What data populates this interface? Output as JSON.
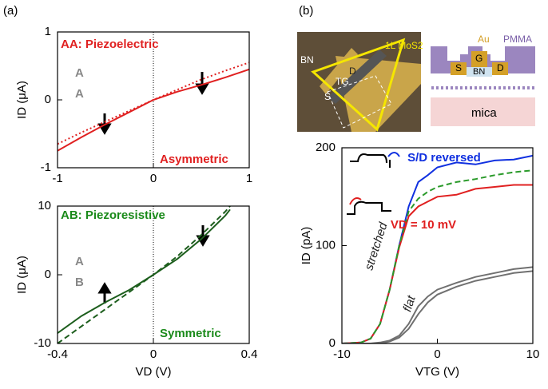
{
  "panel_labels": [
    "(a)",
    "(b)"
  ],
  "device_image": {
    "labels": [
      "1L MoS2",
      "BN",
      "D",
      "TG",
      "S"
    ]
  },
  "schematic": {
    "labels": [
      "Au",
      "PMMA",
      "S",
      "G",
      "D",
      "BN",
      "mica"
    ]
  },
  "chart_data": [
    {
      "type": "line",
      "title": "AA: Piezoelectric",
      "title_color": "#e02020",
      "annotations": [
        "Asymmetric",
        "A",
        "A"
      ],
      "annotation_color": "#e02020",
      "ylabel": "ID (μA)",
      "xlim": [
        -1,
        1
      ],
      "ylim": [
        -1,
        1
      ],
      "xticks": [
        -1,
        0,
        1
      ],
      "yticks": [
        -1,
        0,
        1
      ],
      "zero_line": true,
      "x": [
        -1,
        -0.75,
        -0.5,
        -0.25,
        0,
        0.25,
        0.5,
        0.75,
        1
      ],
      "series": [
        {
          "color": "#e02020",
          "dash": "solid",
          "values": [
            -0.75,
            -0.55,
            -0.36,
            -0.18,
            0,
            0.12,
            0.22,
            0.33,
            0.45
          ]
        },
        {
          "color": "#e02020",
          "dash": "dotted",
          "values": [
            -0.65,
            -0.48,
            -0.32,
            -0.16,
            0,
            0.15,
            0.3,
            0.43,
            0.55
          ]
        }
      ]
    },
    {
      "type": "line",
      "title": "AB: Piezoresistive",
      "title_color": "#1a8a1a",
      "annotations": [
        "Symmetric",
        "A",
        "B"
      ],
      "annotation_color": "#1a8a1a",
      "xlabel": "VD (V)",
      "ylabel": "ID (μA)",
      "xlim": [
        -0.4,
        0.4
      ],
      "ylim": [
        -10,
        10
      ],
      "xticks": [
        -0.4,
        0,
        0.4
      ],
      "yticks": [
        -10,
        0,
        10
      ],
      "zero_line": true,
      "x": [
        -0.4,
        -0.3,
        -0.2,
        -0.1,
        0,
        0.1,
        0.2,
        0.3,
        0.32
      ],
      "series": [
        {
          "color": "#1d5e1d",
          "dash": "solid",
          "values": [
            -8.5,
            -6,
            -4,
            -2.2,
            0,
            2.3,
            5.2,
            8.6,
            9.5
          ]
        },
        {
          "color": "#1d5e1d",
          "dash": "dashed",
          "values": [
            -10,
            -7.5,
            -5,
            -2.5,
            0,
            2.7,
            5.8,
            9.2,
            10
          ]
        }
      ]
    },
    {
      "type": "line",
      "annotations": [
        "stretched",
        "flat"
      ],
      "annotation_color": "#222",
      "xlabel": "VTG (V)",
      "ylabel": "ID (pA)",
      "xlim": [
        -10,
        10
      ],
      "ylim": [
        0,
        200
      ],
      "xticks": [
        -10,
        0,
        10
      ],
      "yticks": [
        0,
        100,
        200
      ],
      "zero_line": false,
      "x": [
        -10,
        -8,
        -7,
        -6,
        -5,
        -4,
        -3,
        -2,
        -1,
        0,
        2,
        4,
        6,
        8,
        10
      ],
      "series": [
        {
          "name": "S/D reversed",
          "color": "#1030e0",
          "dash": "solid",
          "values": [
            0,
            1,
            5,
            20,
            55,
            100,
            140,
            165,
            172,
            180,
            185,
            183,
            187,
            188,
            192
          ]
        },
        {
          "name": "VD = 10 mV",
          "color": "#e02020",
          "dash": "solid",
          "values": [
            0,
            1,
            5,
            20,
            55,
            98,
            130,
            140,
            145,
            150,
            152,
            158,
            160,
            162,
            162
          ]
        },
        {
          "color": "#2a9a2a",
          "dash": "dashed",
          "values": [
            0,
            1,
            5,
            20,
            55,
            100,
            135,
            148,
            155,
            160,
            165,
            168,
            172,
            175,
            177
          ]
        },
        {
          "color": "#707070",
          "dash": "solid",
          "values": [
            0,
            0,
            0,
            1,
            3,
            8,
            20,
            38,
            48,
            55,
            62,
            68,
            72,
            76,
            78
          ]
        },
        {
          "color": "#707070",
          "dash": "solid",
          "values": [
            0,
            0,
            0,
            0,
            2,
            6,
            15,
            30,
            42,
            50,
            58,
            64,
            68,
            72,
            74
          ]
        }
      ]
    }
  ]
}
